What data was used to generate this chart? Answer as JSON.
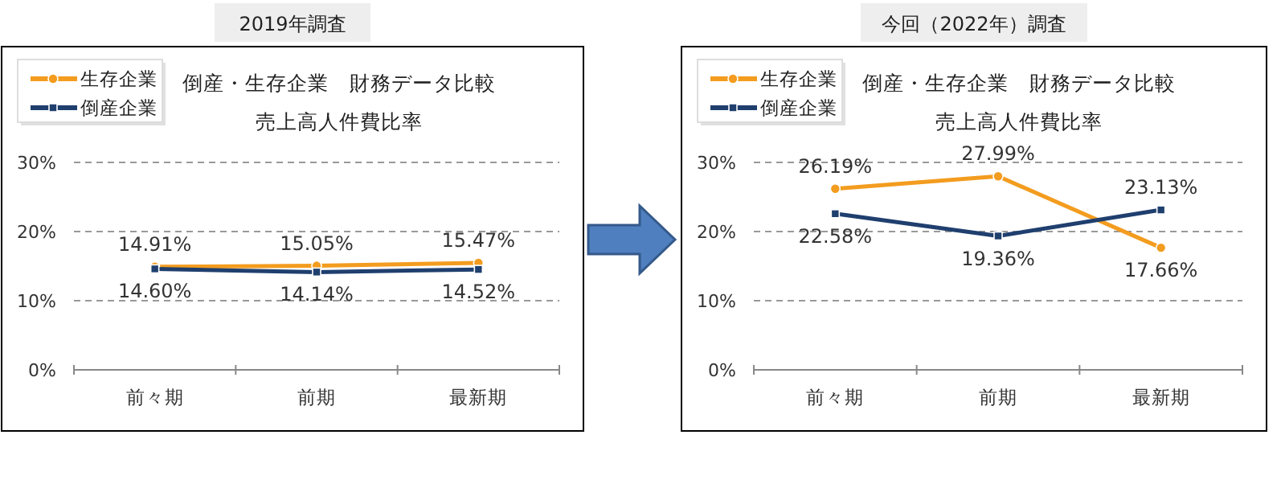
{
  "chart_data": [
    {
      "type": "line",
      "title": "倒産・生存企業　財務データ比較",
      "subtitle": "売上高人件費比率",
      "annotations": [
        "2019年調査"
      ],
      "categories": [
        "前々期",
        "前期",
        "最新期"
      ],
      "ylim": [
        0,
        30
      ],
      "yticks": [
        {
          "value": 0,
          "label": "0%"
        },
        {
          "value": 10,
          "label": "10%"
        },
        {
          "value": 20,
          "label": "20%"
        },
        {
          "value": 30,
          "label": "30%"
        }
      ],
      "grid": "y",
      "legend": "top left",
      "line_style": "solid",
      "series": [
        {
          "name": "生存企業",
          "color": "#f39c1f",
          "marker": "circle",
          "values": [
            14.91,
            15.05,
            15.47
          ],
          "value_labels": [
            "14.91%",
            "15.05%",
            "15.47%"
          ]
        },
        {
          "name": "倒産企業",
          "color": "#1f3f6e",
          "marker": "square",
          "values": [
            14.6,
            14.14,
            14.52
          ],
          "value_labels": [
            "14.60%",
            "14.14%",
            "14.52%"
          ]
        }
      ]
    },
    {
      "type": "line",
      "title": "倒産・生存企業　財務データ比較",
      "subtitle": "売上高人件費比率",
      "annotations": [
        "今回（2022年）調査"
      ],
      "categories": [
        "前々期",
        "前期",
        "最新期"
      ],
      "ylim": [
        0,
        30
      ],
      "yticks": [
        {
          "value": 0,
          "label": "0%"
        },
        {
          "value": 10,
          "label": "10%"
        },
        {
          "value": 20,
          "label": "20%"
        },
        {
          "value": 30,
          "label": "30%"
        }
      ],
      "grid": "y",
      "legend": "top left",
      "line_style": "solid",
      "series": [
        {
          "name": "生存企業",
          "color": "#f39c1f",
          "marker": "circle",
          "values": [
            26.19,
            27.99,
            17.66
          ],
          "value_labels": [
            "26.19%",
            "27.99%",
            "17.66%"
          ]
        },
        {
          "name": "倒産企業",
          "color": "#1f3f6e",
          "marker": "square",
          "values": [
            22.58,
            19.36,
            23.13
          ],
          "value_labels": [
            "22.58%",
            "19.36%",
            "23.13%"
          ]
        }
      ]
    }
  ]
}
